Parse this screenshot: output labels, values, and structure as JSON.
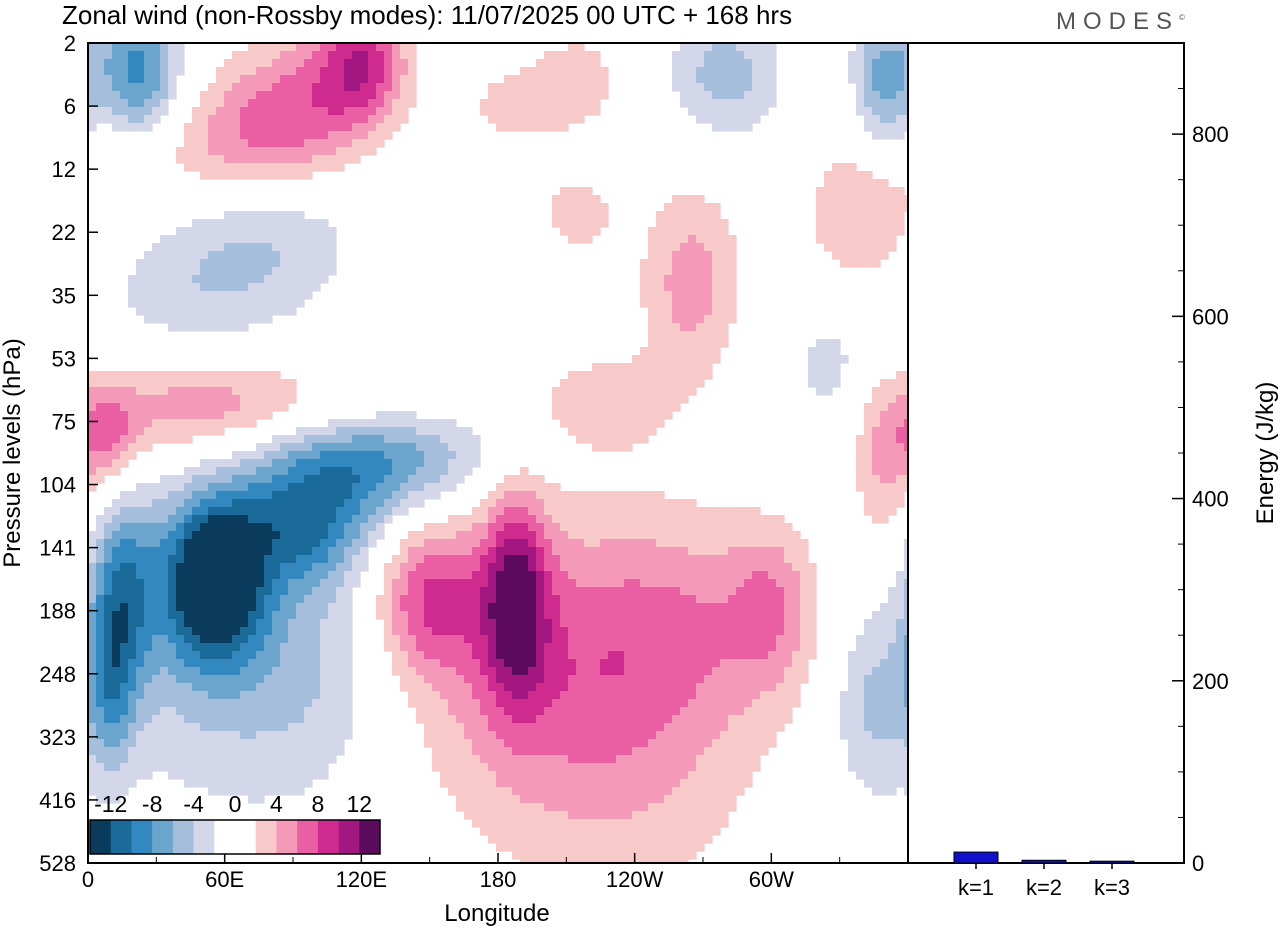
{
  "title": "Zonal wind (non-Rossby modes):  11/07/2025  00 UTC  + 168 hrs",
  "logo": "MODES",
  "chart_data": [
    {
      "type": "heatmap",
      "variable": "Zonal wind (non-Rossby modes)",
      "xlabel": "Longitude",
      "ylabel": "Pressure levels (hPa)",
      "x_ticks": [
        "0",
        "60E",
        "120E",
        "180",
        "120W",
        "60W"
      ],
      "y_ticks": [
        "2",
        "6",
        "12",
        "22",
        "35",
        "53",
        "75",
        "104",
        "141",
        "188",
        "248",
        "323",
        "416",
        "528"
      ],
      "colorbar": {
        "labels": [
          "-12",
          "-8",
          "-4",
          "0",
          "4",
          "8",
          "12"
        ],
        "colors": [
          "#0b3b5c",
          "#1a6a9a",
          "#3388bf",
          "#6ba4cc",
          "#a5bedc",
          "#d4d7e9",
          "#ffffff",
          "#ffffff",
          "#f7c9c9",
          "#f49ab8",
          "#ea5fa4",
          "#cf2b8e",
          "#a31880",
          "#5c0a5e"
        ]
      },
      "blobs": [
        {
          "lon": 22,
          "lev": 0.5,
          "rx": 18,
          "ry": 1.3,
          "v": -9
        },
        {
          "lon": 120,
          "lev": 0.3,
          "rx": 20,
          "ry": 1.0,
          "v": 9
        },
        {
          "lon": 90,
          "lev": 1.2,
          "rx": 30,
          "ry": 1.2,
          "v": 7
        },
        {
          "lon": 60,
          "lev": 1.7,
          "rx": 30,
          "ry": 1.0,
          "v": 4
        },
        {
          "lon": 20,
          "lev": 1.8,
          "rx": 22,
          "ry": 0.9,
          "v": 3
        },
        {
          "lon": 80,
          "lev": 2.8,
          "rx": 40,
          "ry": 1.3,
          "v": -4
        },
        {
          "lon": 45,
          "lev": 4.0,
          "rx": 45,
          "ry": 1.2,
          "v": -3
        },
        {
          "lon": 185,
          "lev": 1.0,
          "rx": 25,
          "ry": 0.8,
          "v": 2.5
        },
        {
          "lon": 280,
          "lev": 0.5,
          "rx": 25,
          "ry": 1.0,
          "v": -5
        },
        {
          "lon": 350,
          "lev": 0.6,
          "rx": 14,
          "ry": 1.2,
          "v": -7
        },
        {
          "lon": 215,
          "lev": 0.6,
          "rx": 20,
          "ry": 0.8,
          "v": 3
        },
        {
          "lon": 265,
          "lev": 3.8,
          "rx": 22,
          "ry": 1.5,
          "v": 5
        },
        {
          "lon": 340,
          "lev": 2.8,
          "rx": 26,
          "ry": 1.4,
          "v": 4
        },
        {
          "lon": 215,
          "lev": 2.7,
          "rx": 18,
          "ry": 0.7,
          "v": 3
        },
        {
          "lon": 50,
          "lev": 5.8,
          "rx": 55,
          "ry": 0.9,
          "v": 6
        },
        {
          "lon": 10,
          "lev": 6.3,
          "rx": 12,
          "ry": 0.8,
          "v": 5
        },
        {
          "lon": 330,
          "lev": 5.2,
          "rx": 30,
          "ry": 1.3,
          "v": -3
        },
        {
          "lon": 350,
          "lev": 6.5,
          "rx": 15,
          "ry": 1.4,
          "v": 5
        },
        {
          "lon": 125,
          "lev": 6.4,
          "rx": 60,
          "ry": 0.6,
          "v": -4
        },
        {
          "lon": 120,
          "lev": 6.9,
          "rx": 45,
          "ry": 0.7,
          "v": -6
        },
        {
          "lon": 225,
          "lev": 5.7,
          "rx": 30,
          "ry": 0.8,
          "v": 3
        },
        {
          "lon": 55,
          "lev": 8.5,
          "rx": 22,
          "ry": 1.3,
          "v": -14
        },
        {
          "lon": 95,
          "lev": 7.7,
          "rx": 30,
          "ry": 0.9,
          "v": -8
        },
        {
          "lon": 15,
          "lev": 8.8,
          "rx": 14,
          "ry": 1.6,
          "v": -8
        },
        {
          "lon": 55,
          "lev": 9.5,
          "rx": 60,
          "ry": 2.6,
          "v": -4
        },
        {
          "lon": 100,
          "lev": 10.0,
          "rx": 40,
          "ry": 2.0,
          "v": -2.5
        },
        {
          "lon": 188,
          "lev": 8.8,
          "rx": 14,
          "ry": 1.6,
          "v": 10
        },
        {
          "lon": 150,
          "lev": 8.8,
          "rx": 25,
          "ry": 1.2,
          "v": 7
        },
        {
          "lon": 200,
          "lev": 10.0,
          "rx": 65,
          "ry": 2.4,
          "v": 5
        },
        {
          "lon": 240,
          "lev": 10.8,
          "rx": 60,
          "ry": 3.2,
          "v": 3
        },
        {
          "lon": 270,
          "lev": 9.2,
          "rx": 50,
          "ry": 1.6,
          "v": 3
        },
        {
          "lon": 345,
          "lev": 10.5,
          "rx": 18,
          "ry": 1.5,
          "v": -4
        },
        {
          "lon": 10,
          "lev": 10.3,
          "rx": 10,
          "ry": 1.3,
          "v": -5
        },
        {
          "lon": 300,
          "lev": 8.9,
          "rx": 18,
          "ry": 1.2,
          "v": 4
        }
      ]
    },
    {
      "type": "bar",
      "categories": [
        "k=1",
        "k=2",
        "k=3"
      ],
      "values": [
        12,
        3,
        2
      ],
      "ylabel": "Energy (J/kg)",
      "ylim": [
        0,
        900
      ],
      "y_ticks": [
        "0",
        "200",
        "400",
        "600",
        "800"
      ],
      "bar_color": "#1010cc"
    }
  ]
}
